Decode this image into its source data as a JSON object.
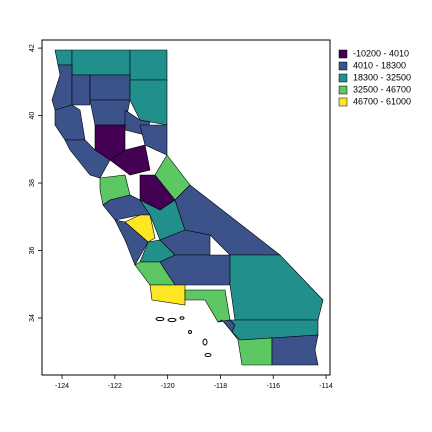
{
  "map": {
    "xlim": [
      -124.76,
      -113.85
    ],
    "ylim": [
      32.31,
      42.24
    ],
    "xticks": [
      -124,
      -122,
      -120,
      -118,
      -116,
      -114
    ],
    "yticks": [
      34,
      36,
      38,
      40,
      42
    ],
    "legend": [
      {
        "label": "-10200 - 4010",
        "color": "#440154"
      },
      {
        "label": "4010 - 18300",
        "color": "#3b528b"
      },
      {
        "label": "18300 - 32500",
        "color": "#21908d"
      },
      {
        "label": "32500 - 46700",
        "color": "#5dc863"
      },
      {
        "label": "46700 - 61000",
        "color": "#fde725"
      }
    ]
  }
}
